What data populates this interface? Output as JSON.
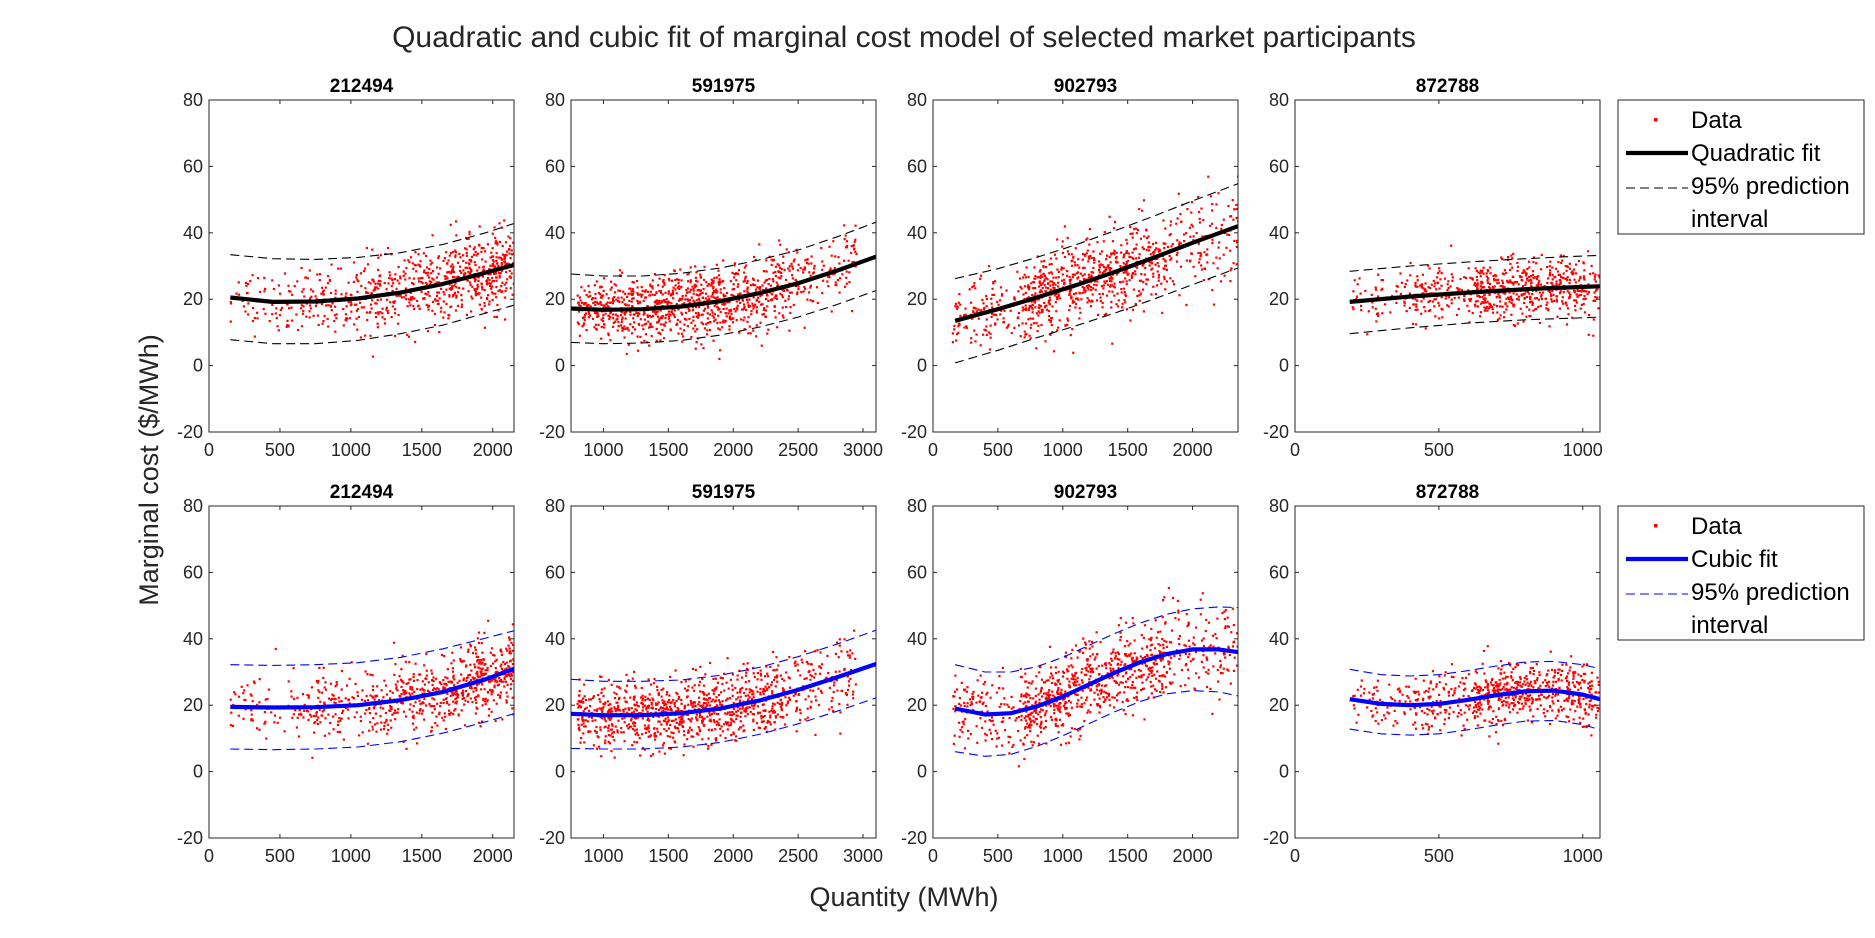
{
  "figure": {
    "title": "Quadratic and cubic fit of marginal cost model of selected market participants",
    "xlabel": "Quantity (MWh)",
    "ylabel": "Marginal cost ($/MWh)"
  },
  "legends": [
    {
      "items": [
        {
          "label": "Data",
          "kind": "dot",
          "color": "#ff0000"
        },
        {
          "label": "Quadratic fit",
          "kind": "line",
          "color": "#000000"
        },
        {
          "label": "95% prediction",
          "kind": "dash",
          "color": "#000000"
        },
        {
          "label": "interval",
          "kind": "none",
          "color": "#000000"
        }
      ]
    },
    {
      "items": [
        {
          "label": "Data",
          "kind": "dot",
          "color": "#ff0000"
        },
        {
          "label": "Cubic fit",
          "kind": "line",
          "color": "#0000ff"
        },
        {
          "label": "95% prediction",
          "kind": "dash",
          "color": "#0000ff"
        },
        {
          "label": "interval",
          "kind": "none",
          "color": "#0000ff"
        }
      ]
    }
  ],
  "chart_data": [
    {
      "type": "scatter",
      "title": "212494",
      "fit": "quadratic",
      "row": 0,
      "col": 0,
      "xlim": [
        0,
        2150
      ],
      "ylim": [
        -20,
        80
      ],
      "xticks": [
        0,
        500,
        1000,
        1500,
        2000
      ],
      "yticks": [
        -20,
        0,
        20,
        40,
        60,
        80
      ],
      "fit_color": "#000000",
      "data_color": "#ff0000",
      "data_x_range": [
        150,
        2150
      ],
      "data_density": [
        1,
        2,
        3,
        5
      ],
      "fit_line": {
        "x": [
          150,
          450,
          750,
          1050,
          1350,
          1650,
          1950,
          2150
        ],
        "y": [
          20.5,
          19.2,
          19.3,
          20.2,
          22.0,
          24.6,
          28.0,
          30.3
        ]
      },
      "upper_pi": {
        "x": [
          150,
          450,
          750,
          1050,
          1350,
          1650,
          1950,
          2150
        ],
        "y": [
          33.4,
          32.2,
          32.0,
          32.6,
          34.0,
          36.5,
          40.0,
          42.8
        ]
      },
      "lower_pi": {
        "x": [
          150,
          450,
          750,
          1050,
          1350,
          1650,
          1950,
          2150
        ],
        "y": [
          7.8,
          6.6,
          6.6,
          7.6,
          9.6,
          12.2,
          15.8,
          18.2
        ]
      }
    },
    {
      "type": "scatter",
      "title": "591975",
      "fit": "quadratic",
      "row": 0,
      "col": 1,
      "xlim": [
        750,
        3100
      ],
      "ylim": [
        -20,
        80
      ],
      "xticks": [
        1000,
        1500,
        2000,
        2500,
        3000
      ],
      "yticks": [
        -20,
        0,
        20,
        40,
        60,
        80
      ],
      "fit_color": "#000000",
      "data_color": "#ff0000",
      "data_x_range": [
        800,
        2950
      ],
      "data_density": [
        4,
        5,
        4,
        2
      ],
      "fit_line": {
        "x": [
          750,
          1000,
          1300,
          1600,
          1900,
          2200,
          2500,
          2800,
          3100
        ],
        "y": [
          17.2,
          16.8,
          17.0,
          17.8,
          19.4,
          21.8,
          24.8,
          28.6,
          32.8
        ]
      },
      "upper_pi": {
        "x": [
          750,
          1000,
          1300,
          1600,
          1900,
          2200,
          2500,
          2800,
          3100
        ],
        "y": [
          27.6,
          27.0,
          27.0,
          27.8,
          29.4,
          31.8,
          34.8,
          38.8,
          43.2
        ]
      },
      "lower_pi": {
        "x": [
          750,
          1000,
          1300,
          1600,
          1900,
          2200,
          2500,
          2800,
          3100
        ],
        "y": [
          7.0,
          6.6,
          6.8,
          7.6,
          9.2,
          11.6,
          14.6,
          18.4,
          22.6
        ]
      }
    },
    {
      "type": "scatter",
      "title": "902793",
      "fit": "quadratic",
      "row": 0,
      "col": 2,
      "xlim": [
        0,
        2350
      ],
      "ylim": [
        -20,
        80
      ],
      "xticks": [
        0,
        500,
        1000,
        1500,
        2000
      ],
      "yticks": [
        -20,
        0,
        20,
        40,
        60,
        80
      ],
      "fit_color": "#000000",
      "data_color": "#ff0000",
      "data_x_range": [
        150,
        2350
      ],
      "data_density": [
        2,
        5,
        4,
        2
      ],
      "fit_line": {
        "x": [
          170,
          500,
          800,
          1100,
          1400,
          1700,
          2000,
          2350
        ],
        "y": [
          13.5,
          17.0,
          20.5,
          24.2,
          28.2,
          32.5,
          37.0,
          42.0
        ]
      },
      "upper_pi": {
        "x": [
          170,
          500,
          800,
          1100,
          1400,
          1700,
          2000,
          2350
        ],
        "y": [
          26.2,
          29.2,
          32.6,
          36.4,
          40.6,
          45.0,
          49.6,
          54.8
        ]
      },
      "lower_pi": {
        "x": [
          170,
          500,
          800,
          1100,
          1400,
          1700,
          2000,
          2350
        ],
        "y": [
          0.8,
          4.6,
          8.4,
          12.0,
          15.8,
          20.0,
          24.4,
          29.4
        ]
      }
    },
    {
      "type": "scatter",
      "title": "872788",
      "fit": "quadratic",
      "row": 0,
      "col": 3,
      "xlim": [
        0,
        1060
      ],
      "ylim": [
        -20,
        80
      ],
      "xticks": [
        0,
        500,
        1000
      ],
      "yticks": [
        -20,
        0,
        20,
        40,
        60,
        80
      ],
      "fit_color": "#000000",
      "data_color": "#ff0000",
      "data_x_range": [
        200,
        1060
      ],
      "data_density": [
        1,
        2,
        4,
        3
      ],
      "fit_line": {
        "x": [
          190,
          400,
          600,
          800,
          1000,
          1060
        ],
        "y": [
          19.2,
          20.8,
          22.0,
          23.0,
          23.7,
          23.9
        ]
      },
      "upper_pi": {
        "x": [
          190,
          400,
          600,
          800,
          1000,
          1060
        ],
        "y": [
          28.4,
          30.0,
          31.2,
          32.2,
          33.0,
          33.2
        ]
      },
      "lower_pi": {
        "x": [
          190,
          400,
          600,
          800,
          1000,
          1060
        ],
        "y": [
          9.6,
          11.4,
          12.8,
          13.8,
          14.4,
          14.6
        ]
      }
    },
    {
      "type": "scatter",
      "title": "212494",
      "fit": "cubic",
      "row": 1,
      "col": 0,
      "xlim": [
        0,
        2150
      ],
      "ylim": [
        -20,
        80
      ],
      "xticks": [
        0,
        500,
        1000,
        1500,
        2000
      ],
      "yticks": [
        -20,
        0,
        20,
        40,
        60,
        80
      ],
      "fit_color": "#0000ff",
      "data_color": "#ff0000",
      "data_x_range": [
        150,
        2150
      ],
      "data_density": [
        1,
        2,
        3,
        5
      ],
      "fit_line": {
        "x": [
          150,
          450,
          750,
          1050,
          1350,
          1650,
          1950,
          2150
        ],
        "y": [
          19.5,
          19.3,
          19.4,
          20.0,
          21.5,
          24.0,
          27.8,
          31.0
        ]
      },
      "upper_pi": {
        "x": [
          150,
          450,
          750,
          1050,
          1350,
          1650,
          1950,
          2150
        ],
        "y": [
          32.2,
          32.0,
          32.2,
          32.8,
          34.4,
          37.0,
          40.2,
          42.4
        ]
      },
      "lower_pi": {
        "x": [
          150,
          450,
          750,
          1050,
          1350,
          1650,
          1950,
          2150
        ],
        "y": [
          6.8,
          6.6,
          6.8,
          7.4,
          9.0,
          11.6,
          15.0,
          17.4
        ]
      }
    },
    {
      "type": "scatter",
      "title": "591975",
      "fit": "cubic",
      "row": 1,
      "col": 1,
      "xlim": [
        750,
        3100
      ],
      "ylim": [
        -20,
        80
      ],
      "xticks": [
        1000,
        1500,
        2000,
        2500,
        3000
      ],
      "yticks": [
        -20,
        0,
        20,
        40,
        60,
        80
      ],
      "fit_color": "#0000ff",
      "data_color": "#ff0000",
      "data_x_range": [
        800,
        2950
      ],
      "data_density": [
        4,
        5,
        4,
        2
      ],
      "fit_line": {
        "x": [
          750,
          1000,
          1300,
          1600,
          1900,
          2200,
          2500,
          2800,
          3100
        ],
        "y": [
          17.4,
          17.0,
          17.0,
          17.6,
          19.0,
          21.4,
          24.6,
          28.4,
          32.4
        ]
      },
      "upper_pi": {
        "x": [
          750,
          1000,
          1300,
          1600,
          1900,
          2200,
          2500,
          2800,
          3100
        ],
        "y": [
          27.8,
          27.2,
          27.2,
          27.6,
          29.0,
          31.4,
          34.6,
          38.4,
          42.6
        ]
      },
      "lower_pi": {
        "x": [
          750,
          1000,
          1300,
          1600,
          1900,
          2200,
          2500,
          2800,
          3100
        ],
        "y": [
          7.0,
          6.8,
          6.8,
          7.4,
          8.8,
          11.2,
          14.4,
          18.2,
          22.2
        ]
      }
    },
    {
      "type": "scatter",
      "title": "902793",
      "fit": "cubic",
      "row": 1,
      "col": 2,
      "xlim": [
        0,
        2350
      ],
      "ylim": [
        -20,
        80
      ],
      "xticks": [
        0,
        500,
        1000,
        1500,
        2000
      ],
      "yticks": [
        -20,
        0,
        20,
        40,
        60,
        80
      ],
      "fit_color": "#0000ff",
      "data_color": "#ff0000",
      "data_x_range": [
        150,
        2350
      ],
      "data_density": [
        2,
        5,
        4,
        2
      ],
      "fit_line": {
        "x": [
          170,
          400,
          600,
          800,
          1000,
          1200,
          1400,
          1600,
          1800,
          2000,
          2200,
          2350
        ],
        "y": [
          19.0,
          17.2,
          17.6,
          19.6,
          22.6,
          26.2,
          29.8,
          33.0,
          35.4,
          36.8,
          36.8,
          36.0
        ]
      },
      "upper_pi": {
        "x": [
          170,
          400,
          600,
          800,
          1000,
          1200,
          1400,
          1600,
          1800,
          2000,
          2200,
          2350
        ],
        "y": [
          32.2,
          30.0,
          30.0,
          31.6,
          34.4,
          38.0,
          41.6,
          44.8,
          47.4,
          49.0,
          49.6,
          49.4
        ]
      },
      "lower_pi": {
        "x": [
          170,
          400,
          600,
          800,
          1000,
          1200,
          1400,
          1600,
          1800,
          2000,
          2200,
          2350
        ],
        "y": [
          6.0,
          4.6,
          5.2,
          7.6,
          10.8,
          14.4,
          18.0,
          21.2,
          23.4,
          24.4,
          24.0,
          22.8
        ]
      }
    },
    {
      "type": "scatter",
      "title": "872788",
      "fit": "cubic",
      "row": 1,
      "col": 3,
      "xlim": [
        0,
        1060
      ],
      "ylim": [
        -20,
        80
      ],
      "xticks": [
        0,
        500,
        1000
      ],
      "yticks": [
        -20,
        0,
        20,
        40,
        60,
        80
      ],
      "fit_color": "#0000ff",
      "data_color": "#ff0000",
      "data_x_range": [
        200,
        1060
      ],
      "data_density": [
        1,
        2,
        4,
        3
      ],
      "fit_line": {
        "x": [
          190,
          300,
          400,
          500,
          600,
          700,
          800,
          900,
          1000,
          1060
        ],
        "y": [
          21.8,
          20.4,
          20.0,
          20.4,
          21.6,
          23.0,
          24.2,
          24.4,
          23.2,
          21.8
        ]
      },
      "upper_pi": {
        "x": [
          190,
          300,
          400,
          500,
          600,
          700,
          800,
          900,
          1000,
          1060
        ],
        "y": [
          30.8,
          29.2,
          28.8,
          29.2,
          30.4,
          31.8,
          33.0,
          33.2,
          32.2,
          31.0
        ]
      },
      "lower_pi": {
        "x": [
          190,
          300,
          400,
          500,
          600,
          700,
          800,
          900,
          1000,
          1060
        ],
        "y": [
          12.8,
          11.4,
          11.0,
          11.4,
          12.6,
          14.0,
          15.2,
          15.4,
          14.2,
          12.6
        ]
      }
    }
  ]
}
